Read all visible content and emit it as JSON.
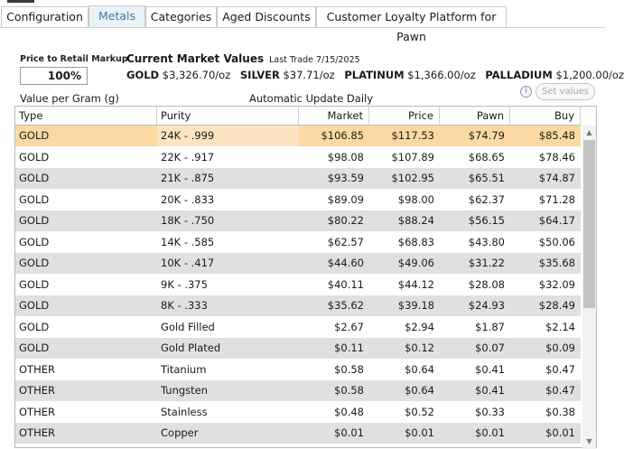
{
  "tabs": [
    {
      "label": "Configuration"
    },
    {
      "label": "Metals"
    },
    {
      "label": "Categories"
    },
    {
      "label": "Aged Discounts"
    },
    {
      "label": "Customer Loyalty Platform for Pawn"
    }
  ],
  "markup": {
    "label": "Price to Retail Markup",
    "value": "100%"
  },
  "market": {
    "title": "Current Market Values",
    "last_trade": "Last Trade 7/15/2025",
    "gold_label": "GOLD",
    "gold_value": "$3,326.70/oz",
    "silver_label": "SILVER",
    "silver_value": "$37.71/oz",
    "platinum_label": "PLATINUM",
    "platinum_value": "$1,366.00/oz",
    "palladium_label": "PALLADIUM",
    "palladium_value": "$1,200.00/oz"
  },
  "value_per_gram": "Value per Gram (g)",
  "auto_update": "Automatic Update Daily",
  "info_icon": "i",
  "set_values_label": "Set values",
  "grid": {
    "columns": [
      "Type",
      "Purity",
      "Market",
      "Price",
      "Pawn",
      "Buy"
    ],
    "rows": [
      [
        "GOLD",
        "24K - .999",
        "$106.85",
        "$117.53",
        "$74.79",
        "$85.48"
      ],
      [
        "GOLD",
        "22K - .917",
        "$98.08",
        "$107.89",
        "$68.65",
        "$78.46"
      ],
      [
        "GOLD",
        "21K - .875",
        "$93.59",
        "$102.95",
        "$65.51",
        "$74.87"
      ],
      [
        "GOLD",
        "20K - .833",
        "$89.09",
        "$98.00",
        "$62.37",
        "$71.28"
      ],
      [
        "GOLD",
        "18K - .750",
        "$80.22",
        "$88.24",
        "$56.15",
        "$64.17"
      ],
      [
        "GOLD",
        "14K - .585",
        "$62.57",
        "$68.83",
        "$43.80",
        "$50.06"
      ],
      [
        "GOLD",
        "10K - .417",
        "$44.60",
        "$49.06",
        "$31.22",
        "$35.68"
      ],
      [
        "GOLD",
        "9K - .375",
        "$40.11",
        "$44.12",
        "$28.08",
        "$32.09"
      ],
      [
        "GOLD",
        "8K - .333",
        "$35.62",
        "$39.18",
        "$24.93",
        "$28.49"
      ],
      [
        "GOLD",
        "Gold Filled",
        "$2.67",
        "$2.94",
        "$1.87",
        "$2.14"
      ],
      [
        "GOLD",
        "Gold Plated",
        "$0.11",
        "$0.12",
        "$0.07",
        "$0.09"
      ],
      [
        "OTHER",
        "Titanium",
        "$0.58",
        "$0.64",
        "$0.41",
        "$0.47"
      ],
      [
        "OTHER",
        "Tungsten",
        "$0.58",
        "$0.64",
        "$0.41",
        "$0.47"
      ],
      [
        "OTHER",
        "Stainless",
        "$0.48",
        "$0.52",
        "$0.33",
        "$0.38"
      ],
      [
        "OTHER",
        "Copper",
        "$0.01",
        "$0.01",
        "$0.01",
        "$0.01"
      ]
    ]
  },
  "colors": {
    "selected_row": "#fcd9a4",
    "alt_row": "#e0e0e0",
    "active_tab_text": "#3d7ea6"
  }
}
